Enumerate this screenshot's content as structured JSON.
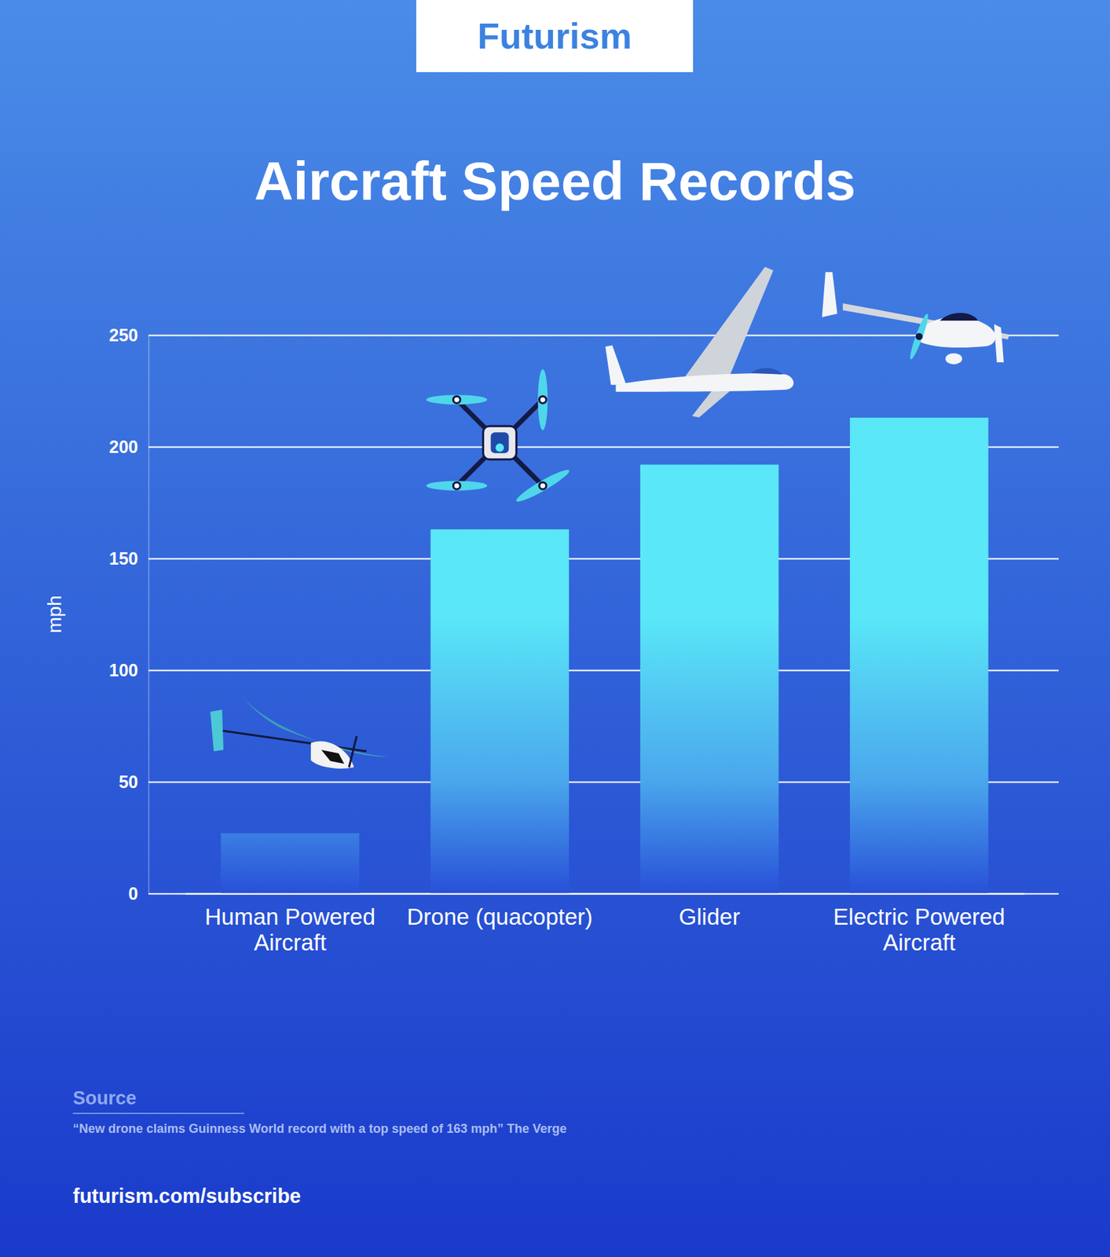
{
  "chart_data": {
    "type": "bar",
    "title": "Aircraft Speed Records",
    "header": "Futurism",
    "ylabel": "mph",
    "categories": [
      "Human Powered Aircraft",
      "Drone (quacopter)",
      "Glider",
      "Electric Powered Aircraft"
    ],
    "values": [
      27,
      163,
      192,
      213
    ],
    "color": "#5ae8f8",
    "ylim": [
      0,
      250
    ],
    "yticks": [
      0,
      50,
      100,
      150,
      200,
      250
    ],
    "grid": true,
    "source_title": "Source",
    "source": "“New drone claims Guinness World record with a top speed of 163 mph” The Verge",
    "footer": "futurism.com/subscribe"
  }
}
